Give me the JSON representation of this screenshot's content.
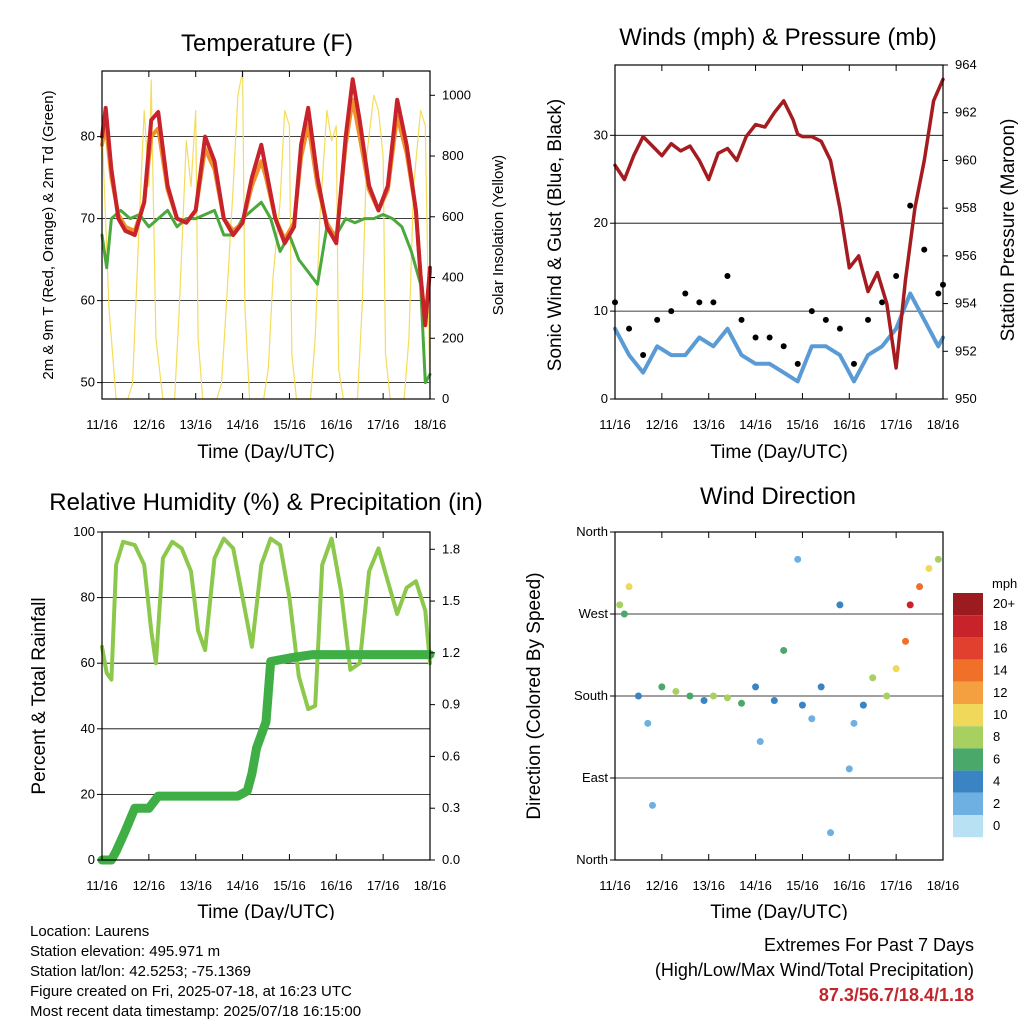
{
  "chart_data": [
    {
      "type": "line",
      "title": "Temperature (F)",
      "xlabel": "Time (Day/UTC)",
      "ylabel": "2m & 9m T (Red, Orange) & 2m Td (Green)",
      "ylabel_right": "Solar Insolation (Yellow)",
      "x_ticks": [
        "11/16",
        "12/16",
        "13/16",
        "14/16",
        "15/16",
        "16/16",
        "17/16",
        "18/16"
      ],
      "xlim": [
        0,
        7
      ],
      "ylim": [
        48,
        88
      ],
      "ylim_right": [
        0,
        1080
      ],
      "yticks": [
        50,
        60,
        70,
        80
      ],
      "yticks_right": [
        0,
        200,
        400,
        600,
        800,
        1000
      ],
      "grid": true,
      "series": [
        {
          "color": "#c8222a",
          "x": [
            0,
            0.08,
            0.2,
            0.35,
            0.5,
            0.7,
            0.9,
            1.05,
            1.2,
            1.4,
            1.6,
            1.8,
            2.0,
            2.2,
            2.4,
            2.6,
            2.8,
            3.0,
            3.2,
            3.4,
            3.5,
            3.7,
            3.9,
            4.1,
            4.25,
            4.4,
            4.6,
            4.8,
            5.0,
            5.2,
            5.35,
            5.5,
            5.7,
            5.9,
            6.1,
            6.3,
            6.5,
            6.7,
            6.8,
            6.9,
            7.0
          ],
          "values": [
            80,
            83.5,
            76,
            70,
            68.5,
            68,
            72,
            82,
            83,
            74,
            70,
            69.5,
            71,
            80,
            77,
            70,
            68,
            69.5,
            75,
            79,
            76,
            70,
            67,
            69,
            79,
            83.5,
            75,
            69,
            67,
            80,
            87,
            82,
            74,
            71,
            74,
            84.5,
            79,
            71,
            63,
            57,
            64
          ]
        },
        {
          "color": "#f0902a",
          "x": [
            0,
            0.08,
            0.2,
            0.35,
            0.5,
            0.7,
            0.9,
            1.05,
            1.2,
            1.4,
            1.6,
            1.8,
            2.0,
            2.2,
            2.4,
            2.6,
            2.8,
            3.0,
            3.2,
            3.4,
            3.5,
            3.7,
            3.9,
            4.1,
            4.25,
            4.4,
            4.6,
            4.8,
            5.0,
            5.2,
            5.35,
            5.5,
            5.7,
            5.9,
            6.1,
            6.3,
            6.5,
            6.7,
            6.8,
            6.9,
            7.0
          ],
          "values": [
            79,
            81.5,
            75,
            70.5,
            69,
            68.5,
            72,
            80,
            81,
            73.5,
            70,
            69.5,
            71,
            78.5,
            76,
            70,
            68.5,
            69.5,
            74,
            77,
            75,
            70,
            67.5,
            69.5,
            77.5,
            81.5,
            74,
            69.5,
            67.5,
            79,
            84.5,
            80,
            73.5,
            71,
            73.5,
            82.5,
            78,
            71,
            63,
            57.5,
            63.5
          ]
        },
        {
          "color": "#4aa83c",
          "x": [
            0,
            0.1,
            0.2,
            0.4,
            0.6,
            0.8,
            1.0,
            1.2,
            1.4,
            1.6,
            1.8,
            2.0,
            2.2,
            2.4,
            2.6,
            2.8,
            3.0,
            3.2,
            3.4,
            3.6,
            3.8,
            4.0,
            4.2,
            4.4,
            4.6,
            4.8,
            5.0,
            5.2,
            5.4,
            5.6,
            5.8,
            6.0,
            6.2,
            6.4,
            6.6,
            6.8,
            6.9,
            7.0
          ],
          "values": [
            68,
            64,
            70,
            71,
            70,
            70.5,
            69,
            70,
            71,
            69,
            70,
            70,
            70.5,
            71,
            68,
            68,
            70,
            71,
            72,
            70,
            66,
            68,
            65,
            63.5,
            62,
            69,
            68,
            70,
            69.5,
            70,
            70,
            70.5,
            70,
            69,
            66,
            62,
            50,
            51
          ]
        },
        {
          "color": "#f5dc5a",
          "x": [
            0,
            0.05,
            0.15,
            0.3,
            0.45,
            0.55,
            0.65,
            0.8,
            0.9,
            1.0,
            1.05,
            1.15,
            1.3,
            1.45,
            1.55,
            1.65,
            1.8,
            1.9,
            2.0,
            2.05,
            2.15,
            2.3,
            2.45,
            2.55,
            2.65,
            2.8,
            2.9,
            3.0,
            3.05,
            3.15,
            3.3,
            3.45,
            3.55,
            3.65,
            3.8,
            3.9,
            4.0,
            4.05,
            4.15,
            4.3,
            4.45,
            4.55,
            4.65,
            4.8,
            4.9,
            5.0,
            5.05,
            5.15,
            5.3,
            5.45,
            5.55,
            5.65,
            5.8,
            5.9,
            6.0,
            6.05,
            6.15,
            6.3,
            6.45,
            6.55,
            6.65,
            6.8,
            6.9,
            7.0
          ],
          "values": [
            900,
            700,
            300,
            0,
            0,
            0,
            50,
            600,
            950,
            700,
            1050,
            200,
            0,
            0,
            0,
            300,
            850,
            700,
            950,
            200,
            0,
            0,
            0,
            50,
            300,
            700,
            1000,
            1080,
            300,
            0,
            0,
            0,
            100,
            400,
            650,
            950,
            900,
            150,
            0,
            0,
            0,
            200,
            600,
            950,
            850,
            900,
            100,
            0,
            0,
            0,
            300,
            800,
            1000,
            950,
            800,
            150,
            0,
            0,
            0,
            200,
            700,
            950,
            900,
            0
          ]
        }
      ]
    },
    {
      "type": "scatter",
      "title": "Winds (mph) & Pressure (mb)",
      "xlabel": "Time (Day/UTC)",
      "ylabel": "Sonic Wind & Gust (Blue, Black)",
      "ylabel_right": "Station Pressure (Maroon)",
      "x_ticks": [
        "11/16",
        "12/16",
        "13/16",
        "14/16",
        "15/16",
        "16/16",
        "17/16",
        "18/16"
      ],
      "xlim": [
        0,
        7
      ],
      "ylim": [
        0,
        38
      ],
      "ylim_right": [
        950,
        964
      ],
      "yticks": [
        0,
        10,
        20,
        30
      ],
      "yticks_right": [
        950,
        952,
        954,
        956,
        958,
        960,
        962,
        964
      ],
      "grid": true,
      "series": [
        {
          "color": "#a51c20",
          "x": [
            0,
            0.2,
            0.4,
            0.6,
            0.8,
            1.0,
            1.2,
            1.4,
            1.6,
            1.8,
            2.0,
            2.2,
            2.4,
            2.6,
            2.8,
            3.0,
            3.2,
            3.4,
            3.6,
            3.8,
            3.9,
            4.0,
            4.2,
            4.4,
            4.6,
            4.8,
            5.0,
            5.2,
            5.4,
            5.6,
            5.8,
            6.0,
            6.2,
            6.4,
            6.6,
            6.8,
            7.0
          ],
          "values": [
            959.8,
            959.2,
            960.2,
            961.0,
            960.6,
            960.2,
            960.7,
            960.4,
            960.6,
            960.0,
            959.2,
            960.3,
            960.5,
            960.0,
            961.0,
            961.5,
            961.4,
            962.0,
            962.5,
            961.7,
            961.1,
            961.0,
            961.0,
            960.8,
            960.0,
            958.0,
            955.5,
            956.0,
            954.5,
            955.3,
            954.0,
            951.3,
            955.0,
            958.0,
            960.0,
            962.5,
            963.4
          ]
        },
        {
          "color": "#5b9bd5",
          "x": [
            0,
            0.3,
            0.6,
            0.9,
            1.2,
            1.5,
            1.8,
            2.1,
            2.4,
            2.7,
            3.0,
            3.3,
            3.6,
            3.9,
            4.2,
            4.5,
            4.8,
            5.1,
            5.4,
            5.7,
            6.0,
            6.3,
            6.6,
            6.9,
            7.0
          ],
          "values": [
            8,
            5,
            3,
            6,
            5,
            5,
            7,
            6,
            8,
            5,
            4,
            4,
            3,
            2,
            6,
            6,
            5,
            2,
            5,
            6,
            8,
            12,
            9,
            6,
            7
          ]
        },
        {
          "color": "#000000",
          "x": [
            0,
            0.3,
            0.6,
            0.9,
            1.2,
            1.5,
            1.8,
            2.1,
            2.4,
            2.7,
            3.0,
            3.3,
            3.6,
            3.9,
            4.2,
            4.5,
            4.8,
            5.1,
            5.4,
            5.7,
            6.0,
            6.3,
            6.6,
            6.9,
            7.0
          ],
          "values": [
            11,
            8,
            5,
            9,
            10,
            12,
            11,
            11,
            14,
            9,
            7,
            7,
            6,
            4,
            10,
            9,
            8,
            4,
            9,
            11,
            14,
            22,
            17,
            12,
            13
          ]
        }
      ]
    },
    {
      "type": "line",
      "title": "Relative Humidity (%) & Precipitation (in)",
      "xlabel": "Time (Day/UTC)",
      "ylabel": "Percent & Total Rainfall",
      "x_ticks": [
        "11/16",
        "12/16",
        "13/16",
        "14/16",
        "15/16",
        "16/16",
        "17/16",
        "18/16"
      ],
      "xlim": [
        0,
        7
      ],
      "ylim": [
        0,
        100
      ],
      "ylim_right": [
        0,
        1.9
      ],
      "yticks": [
        0,
        20,
        40,
        60,
        80,
        100
      ],
      "yticks_right": [
        "0.0",
        "0.3",
        "0.6",
        "0.9",
        "1.2",
        "1.5",
        "1.8"
      ],
      "grid": true,
      "series": [
        {
          "color": "#8cc84b",
          "x": [
            0,
            0.1,
            0.2,
            0.3,
            0.45,
            0.7,
            0.9,
            1.05,
            1.15,
            1.3,
            1.5,
            1.7,
            1.9,
            2.05,
            2.2,
            2.4,
            2.6,
            2.8,
            3.0,
            3.2,
            3.4,
            3.6,
            3.8,
            4.0,
            4.2,
            4.4,
            4.55,
            4.7,
            4.9,
            5.1,
            5.3,
            5.5,
            5.7,
            5.9,
            6.1,
            6.3,
            6.5,
            6.7,
            6.9,
            7.0
          ],
          "values": [
            65,
            57,
            55,
            90,
            97,
            96,
            90,
            70,
            60,
            92,
            97,
            95,
            88,
            70,
            64,
            92,
            98,
            95,
            80,
            65,
            90,
            98,
            96,
            80,
            56,
            46,
            47,
            90,
            98,
            82,
            58,
            60,
            88,
            95,
            85,
            75,
            83,
            85,
            76,
            60
          ]
        },
        {
          "color": "#3fae45",
          "x": [
            0,
            0.2,
            0.3,
            0.5,
            0.7,
            1.0,
            1.2,
            1.5,
            1.8,
            2.0,
            2.3,
            2.5,
            2.7,
            2.9,
            3.1,
            3.2,
            3.3,
            3.5,
            3.6,
            4.0,
            4.5,
            5.0,
            5.5,
            6.0,
            6.5,
            7.0
          ],
          "values": [
            0,
            0,
            0.05,
            0.17,
            0.3,
            0.3,
            0.37,
            0.37,
            0.37,
            0.37,
            0.37,
            0.37,
            0.37,
            0.37,
            0.4,
            0.5,
            0.65,
            0.8,
            1.15,
            1.17,
            1.19,
            1.19,
            1.19,
            1.19,
            1.19,
            1.19
          ]
        }
      ]
    },
    {
      "type": "scatter",
      "title": "Wind Direction",
      "xlabel": "Time (Day/UTC)",
      "ylabel": "Direction (Colored By Speed)",
      "x_ticks": [
        "11/16",
        "12/16",
        "13/16",
        "14/16",
        "15/16",
        "16/16",
        "17/16",
        "18/16"
      ],
      "y_ticks": [
        "North",
        "East",
        "South",
        "West",
        "North"
      ],
      "ylim": [
        0,
        360
      ],
      "colorbar_title": "mph",
      "colorbar_labels": [
        "20+",
        "18",
        "16",
        "14",
        "12",
        "10",
        "8",
        "6",
        "4",
        "2",
        "0"
      ],
      "colorbar_colors": [
        "#9b1b1e",
        "#c8222a",
        "#e2402e",
        "#f0702a",
        "#f5a040",
        "#f0d85a",
        "#a8d060",
        "#4aa86a",
        "#3a84c4",
        "#6eb0e2",
        "#b8e2f4"
      ],
      "grid": true,
      "points": [
        [
          0.1,
          280,
          8
        ],
        [
          0.2,
          270,
          6
        ],
        [
          0.3,
          300,
          9
        ],
        [
          0.5,
          180,
          3
        ],
        [
          0.7,
          150,
          2
        ],
        [
          0.8,
          60,
          2
        ],
        [
          1.0,
          190,
          6
        ],
        [
          1.3,
          185,
          7
        ],
        [
          1.6,
          180,
          5
        ],
        [
          1.9,
          175,
          4
        ],
        [
          2.1,
          180,
          7
        ],
        [
          2.4,
          178,
          8
        ],
        [
          2.7,
          172,
          5
        ],
        [
          3.0,
          190,
          4
        ],
        [
          3.1,
          130,
          2
        ],
        [
          3.4,
          175,
          3
        ],
        [
          3.6,
          230,
          5
        ],
        [
          3.9,
          330,
          2
        ],
        [
          4.0,
          170,
          3
        ],
        [
          4.2,
          155,
          2
        ],
        [
          4.4,
          190,
          4
        ],
        [
          4.6,
          30,
          2
        ],
        [
          4.8,
          280,
          3
        ],
        [
          5.0,
          100,
          2
        ],
        [
          5.1,
          150,
          2
        ],
        [
          5.3,
          170,
          3
        ],
        [
          5.5,
          200,
          7
        ],
        [
          5.8,
          180,
          8
        ],
        [
          6.0,
          210,
          9
        ],
        [
          6.2,
          240,
          14
        ],
        [
          6.3,
          280,
          17
        ],
        [
          6.5,
          300,
          14
        ],
        [
          6.7,
          320,
          10
        ],
        [
          6.9,
          330,
          8
        ]
      ]
    }
  ],
  "info": {
    "location": "Location: Laurens",
    "elevation": "Station elevation: 495.971 m",
    "latlon": "Station lat/lon: 42.5253; -75.1369",
    "created": "Figure created on Fri, 2025-07-18, at 16:23 UTC",
    "recent": "Most recent data timestamp: 2025/07/18 16:15:00"
  },
  "extremes": {
    "heading": "Extremes For Past 7 Days",
    "subheading": "(High/Low/Max Wind/Total Precipitation)",
    "values": "87.3/56.7/18.4/1.18"
  }
}
